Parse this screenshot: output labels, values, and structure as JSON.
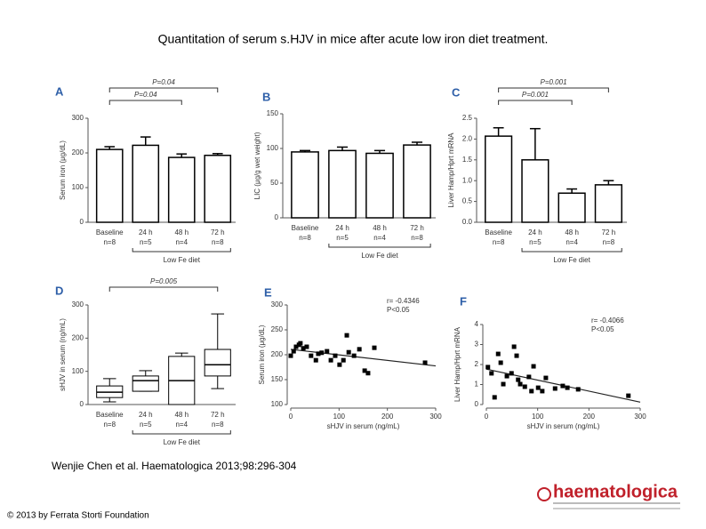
{
  "title": "Quantitation of serum s.HJV in mice after acute low iron diet treatment.",
  "citation": "Wenjie Chen et al. Haematologica 2013;98:296-304",
  "copyright": "© 2013 by Ferrata Storti Foundation",
  "logo": "haematologica",
  "chart_data": [
    {
      "type": "bar",
      "label": "A",
      "ylabel": "Serum iron (μg/dL)",
      "categories": [
        "Baseline",
        "24 h",
        "48 h",
        "72 h"
      ],
      "n_labels": [
        "n=8",
        "n=5",
        "n=4",
        "n=8"
      ],
      "values": [
        210,
        222,
        187,
        193
      ],
      "errors": [
        8,
        24,
        10,
        5
      ],
      "color": "#000000",
      "ylim": [
        0,
        300
      ],
      "yticks": [
        0,
        100,
        200,
        300
      ],
      "annotations": [
        "P=0.04",
        "P=0.04"
      ],
      "group_label": "Low Fe diet"
    },
    {
      "type": "bar",
      "label": "B",
      "ylabel": "LIC (μg/g wet weight)",
      "categories": [
        "Baseline",
        "24 h",
        "48 h",
        "72 h"
      ],
      "n_labels": [
        "n=8",
        "n=5",
        "n=4",
        "n=8"
      ],
      "values": [
        95,
        97,
        93,
        105
      ],
      "errors": [
        2,
        5,
        4,
        4
      ],
      "color": "#000000",
      "ylim": [
        0,
        150
      ],
      "yticks": [
        0,
        50,
        100,
        150
      ],
      "annotations": [],
      "group_label": "Low Fe diet"
    },
    {
      "type": "bar",
      "label": "C",
      "ylabel": "Liver Hamp/Hprt mRNA",
      "categories": [
        "Baseline",
        "24 h",
        "48 h",
        "72 h"
      ],
      "n_labels": [
        "n=8",
        "n=5",
        "n=4",
        "n=8"
      ],
      "values": [
        2.07,
        1.5,
        0.7,
        0.9
      ],
      "errors": [
        0.2,
        0.75,
        0.1,
        0.1
      ],
      "color": "#000000",
      "ylim": [
        0,
        2.5
      ],
      "yticks": [
        {
          "value": 0,
          "label": "0.0"
        },
        0.5,
        {
          "value": 1,
          "label": "1.0"
        },
        1.5,
        {
          "value": 2,
          "label": "2.0"
        },
        2.5
      ],
      "annotations": [
        "P=0.001",
        "P=0.001"
      ],
      "group_label": "Low Fe diet"
    },
    {
      "type": "box",
      "label": "D",
      "ylabel": "sHJV in serum (ng/mL)",
      "categories": [
        "Baseline",
        "24 h",
        "48 h",
        "72 h"
      ],
      "n_labels": [
        "n=8",
        "n=5",
        "n=4",
        "n=8"
      ],
      "min": [
        8,
        40,
        0,
        48
      ],
      "q1": [
        21,
        40,
        0,
        86
      ],
      "median": [
        37,
        72,
        72,
        120
      ],
      "q3": [
        56,
        86,
        145,
        166
      ],
      "max": [
        78,
        102,
        155,
        273
      ],
      "color": "#000000",
      "ylim": [
        0,
        300
      ],
      "yticks": [
        0,
        100,
        200,
        300
      ],
      "annotations": [
        "P=0.005"
      ],
      "group_label": "Low Fe diet"
    },
    {
      "type": "scatter",
      "label": "E",
      "xlabel": "sHJV in serum (ng/mL)",
      "ylabel": "Serum iron (μg/dL)",
      "x": [
        0,
        6,
        11,
        17,
        20,
        26,
        33,
        42,
        52,
        57,
        64,
        75,
        83,
        92,
        101,
        109,
        116,
        120,
        131,
        142,
        153,
        160,
        173,
        278
      ],
      "y": [
        198,
        207,
        216,
        220,
        223,
        213,
        216,
        198,
        189,
        202,
        204,
        207,
        189,
        198,
        180,
        189,
        239,
        205,
        198,
        211,
        168,
        163,
        214,
        184
      ],
      "color": "#000000",
      "xlim": [
        0,
        300
      ],
      "xticks": [
        0,
        100,
        200,
        300
      ],
      "ylim": [
        100,
        300
      ],
      "yticks": [
        100,
        150,
        200,
        250,
        300
      ],
      "annotations": [
        "r= -0.4346",
        "P<0.05"
      ]
    },
    {
      "type": "scatter",
      "label": "F",
      "xlabel": "sHJV in serum (ng/mL)",
      "ylabel": "Liver Hamp/Hprt mRNA",
      "x": [
        3,
        10,
        16,
        23,
        28,
        33,
        40,
        49,
        54,
        59,
        62,
        66,
        75,
        83,
        88,
        92,
        101,
        109,
        116,
        134,
        149,
        158,
        179,
        277
      ],
      "y": [
        1.87,
        1.56,
        0.36,
        2.53,
        2.09,
        1.02,
        1.42,
        1.56,
        2.89,
        2.44,
        1.24,
        1.02,
        0.89,
        1.38,
        0.67,
        1.91,
        0.84,
        0.67,
        1.33,
        0.8,
        0.93,
        0.84,
        0.76,
        0.44
      ],
      "color": "#000000",
      "xlim": [
        0,
        300
      ],
      "xticks": [
        0,
        100,
        200,
        300
      ],
      "ylim": [
        0,
        4
      ],
      "yticks": [
        0,
        1,
        2,
        3,
        4
      ],
      "annotations": [
        "r= -0.4066",
        "P<0.05"
      ]
    }
  ]
}
